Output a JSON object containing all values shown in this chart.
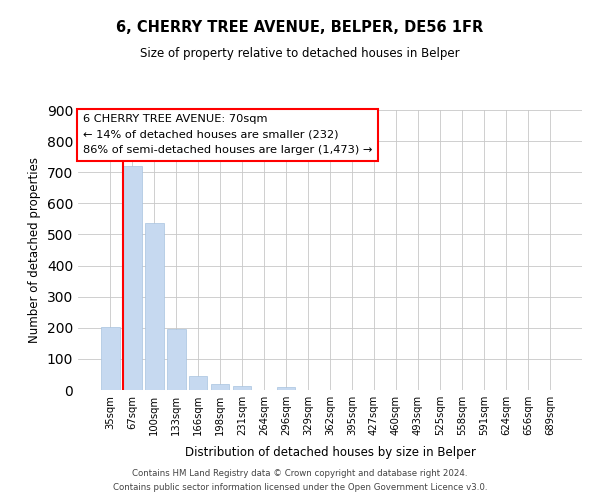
{
  "title": "6, CHERRY TREE AVENUE, BELPER, DE56 1FR",
  "subtitle": "Size of property relative to detached houses in Belper",
  "xlabel": "Distribution of detached houses by size in Belper",
  "ylabel": "Number of detached properties",
  "bar_labels": [
    "35sqm",
    "67sqm",
    "100sqm",
    "133sqm",
    "166sqm",
    "198sqm",
    "231sqm",
    "264sqm",
    "296sqm",
    "329sqm",
    "362sqm",
    "395sqm",
    "427sqm",
    "460sqm",
    "493sqm",
    "525sqm",
    "558sqm",
    "591sqm",
    "624sqm",
    "656sqm",
    "689sqm"
  ],
  "bar_values": [
    203,
    720,
    537,
    195,
    46,
    20,
    14,
    0,
    9,
    0,
    0,
    0,
    0,
    0,
    0,
    0,
    0,
    0,
    0,
    0,
    0
  ],
  "bar_color": "#c6d9f0",
  "bar_edge_color": "#a8c4e0",
  "property_line_color": "red",
  "ylim": [
    0,
    900
  ],
  "yticks": [
    0,
    100,
    200,
    300,
    400,
    500,
    600,
    700,
    800,
    900
  ],
  "annotation_line1": "6 CHERRY TREE AVENUE: 70sqm",
  "annotation_line2": "← 14% of detached houses are smaller (232)",
  "annotation_line3": "86% of semi-detached houses are larger (1,473) →",
  "footer_line1": "Contains HM Land Registry data © Crown copyright and database right 2024.",
  "footer_line2": "Contains public sector information licensed under the Open Government Licence v3.0.",
  "bg_color": "#ffffff",
  "grid_color": "#c8c8c8"
}
